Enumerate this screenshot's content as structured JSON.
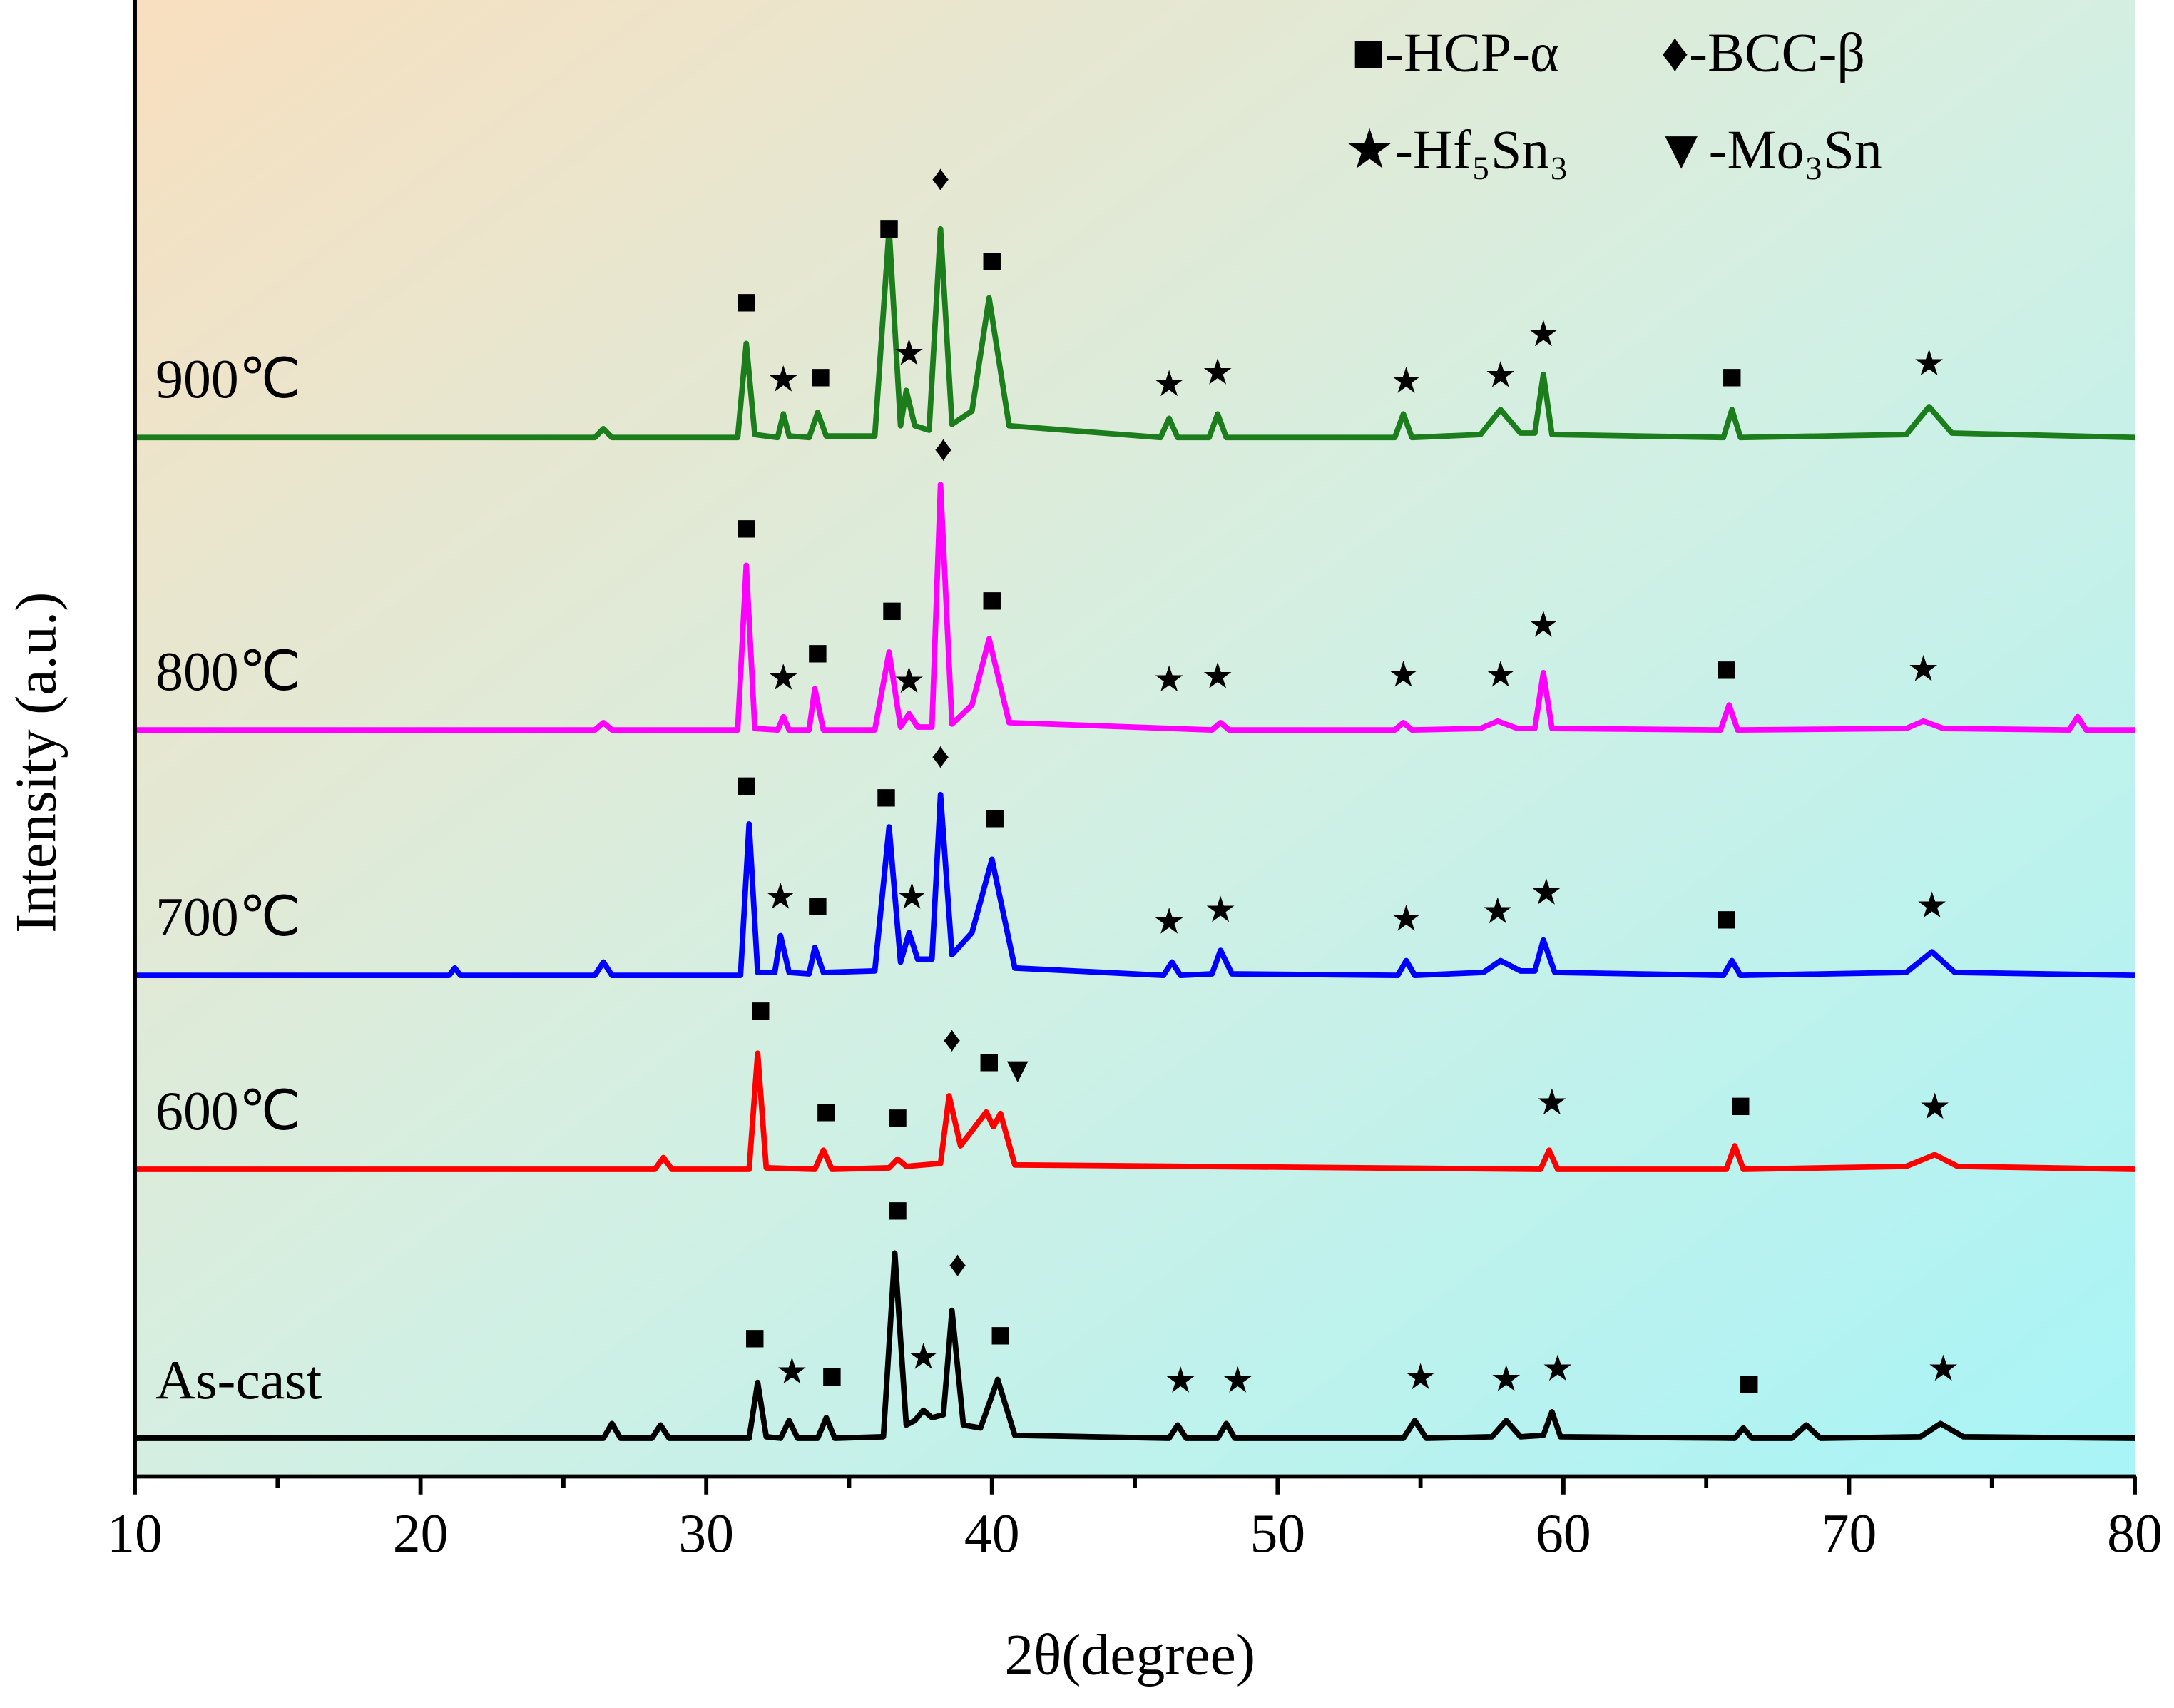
{
  "chart_data": {
    "type": "line",
    "xlabel": "2θ(degree)",
    "ylabel": "Intensity (a.u.)",
    "xlim": [
      10,
      80
    ],
    "xticks": [
      10,
      20,
      30,
      40,
      50,
      60,
      70,
      80
    ],
    "ylim": [
      0,
      100
    ],
    "legend": [
      {
        "text": "■-HCP-α"
      },
      {
        "text": "♦-BCC-β"
      },
      {
        "text": "★-Hf₅Sn₃"
      },
      {
        "text": "▼-Mo₃Sn"
      }
    ],
    "legend_position": "upper right",
    "series": [
      {
        "name": "900℃",
        "color": "#1b7d1b",
        "x": [
          10,
          26.1,
          26.4,
          26.7,
          31.1,
          31.4,
          31.7,
          32.5,
          32.7,
          32.9,
          33.6,
          33.9,
          34.2,
          35.9,
          36.4,
          36.8,
          37.0,
          37.3,
          37.8,
          38.2,
          38.6,
          39.3,
          39.9,
          40.6,
          45.9,
          46.2,
          46.5,
          47.6,
          47.9,
          48.2,
          54.1,
          54.4,
          54.7,
          57.1,
          57.8,
          58.5,
          59.0,
          59.3,
          59.6,
          65.6,
          65.9,
          66.2,
          72.0,
          72.8,
          73.6,
          80
        ],
        "values": [
          70.7,
          70.7,
          71.3,
          70.7,
          70.7,
          77.1,
          70.9,
          70.7,
          72.3,
          70.8,
          70.7,
          72.4,
          70.8,
          70.8,
          84.9,
          71.5,
          73.9,
          71.5,
          71.2,
          84.9,
          71.6,
          72.5,
          80.2,
          71.5,
          70.7,
          72.0,
          70.7,
          70.7,
          72.3,
          70.7,
          70.7,
          72.3,
          70.7,
          70.9,
          72.6,
          71.0,
          71.0,
          75.0,
          70.9,
          70.7,
          72.6,
          70.7,
          70.9,
          72.8,
          71.0,
          70.7
        ],
        "markers": [
          {
            "text": "■",
            "x": 31.4,
            "y": 79.7
          },
          {
            "text": "★",
            "x": 32.7,
            "y": 74.4
          },
          {
            "text": "■",
            "x": 34.0,
            "y": 74.6
          },
          {
            "text": "■",
            "x": 36.4,
            "y": 84.7
          },
          {
            "text": "★",
            "x": 37.1,
            "y": 76.2
          },
          {
            "text": "♦",
            "x": 38.2,
            "y": 88.1
          },
          {
            "text": "■",
            "x": 40.0,
            "y": 82.5
          },
          {
            "text": "★",
            "x": 46.2,
            "y": 74.1
          },
          {
            "text": "★",
            "x": 47.9,
            "y": 74.9
          },
          {
            "text": "★",
            "x": 54.5,
            "y": 74.3
          },
          {
            "text": "★",
            "x": 57.8,
            "y": 74.7
          },
          {
            "text": "★",
            "x": 59.3,
            "y": 77.5
          },
          {
            "text": "■",
            "x": 65.9,
            "y": 74.6
          },
          {
            "text": "★",
            "x": 72.8,
            "y": 75.5
          }
        ]
      },
      {
        "name": "800℃",
        "color": "#ff00ff",
        "x": [
          10,
          26.1,
          26.4,
          26.7,
          31.1,
          31.4,
          31.7,
          32.5,
          32.7,
          32.9,
          33.6,
          33.8,
          34.1,
          35.9,
          36.4,
          36.8,
          37.1,
          37.4,
          37.9,
          38.2,
          38.6,
          39.3,
          39.9,
          40.6,
          47.7,
          48.0,
          48.3,
          54.1,
          54.4,
          54.7,
          57.1,
          57.7,
          58.4,
          59.0,
          59.3,
          59.6,
          65.5,
          65.8,
          66.1,
          72.0,
          72.6,
          73.3,
          77.7,
          78.0,
          78.3,
          80
        ],
        "values": [
          50.8,
          50.8,
          51.3,
          50.8,
          50.8,
          62.0,
          50.9,
          50.8,
          51.7,
          50.8,
          50.8,
          53.6,
          50.8,
          50.8,
          56.1,
          51.0,
          51.9,
          51.0,
          51.0,
          67.5,
          51.2,
          52.5,
          57.0,
          51.3,
          50.8,
          51.3,
          50.8,
          50.8,
          51.3,
          50.8,
          50.9,
          51.4,
          50.9,
          50.9,
          54.7,
          50.9,
          50.8,
          52.5,
          50.8,
          50.9,
          51.4,
          50.9,
          50.8,
          51.7,
          50.8,
          50.8
        ],
        "markers": [
          {
            "text": "■",
            "x": 31.4,
            "y": 64.3
          },
          {
            "text": "★",
            "x": 32.7,
            "y": 54.1
          },
          {
            "text": "■",
            "x": 33.9,
            "y": 55.8
          },
          {
            "text": "■",
            "x": 36.5,
            "y": 58.7
          },
          {
            "text": "★",
            "x": 37.1,
            "y": 53.9
          },
          {
            "text": "♦",
            "x": 38.3,
            "y": 69.7
          },
          {
            "text": "■",
            "x": 40.0,
            "y": 59.4
          },
          {
            "text": "★",
            "x": 46.2,
            "y": 54.0
          },
          {
            "text": "★",
            "x": 47.9,
            "y": 54.2
          },
          {
            "text": "★",
            "x": 54.4,
            "y": 54.3
          },
          {
            "text": "★",
            "x": 57.8,
            "y": 54.3
          },
          {
            "text": "★",
            "x": 59.3,
            "y": 57.7
          },
          {
            "text": "■",
            "x": 65.7,
            "y": 54.7
          },
          {
            "text": "★",
            "x": 72.6,
            "y": 54.7
          }
        ]
      },
      {
        "name": "700℃",
        "color": "#0000ff",
        "x": [
          10,
          21.0,
          21.2,
          21.4,
          26.1,
          26.4,
          26.7,
          31.2,
          31.5,
          31.8,
          32.4,
          32.6,
          32.9,
          33.6,
          33.8,
          34.1,
          35.9,
          36.4,
          36.8,
          37.1,
          37.4,
          37.9,
          38.2,
          38.6,
          39.3,
          40.0,
          40.8,
          46.0,
          46.3,
          46.6,
          47.7,
          48.0,
          48.4,
          54.2,
          54.5,
          54.8,
          57.2,
          57.8,
          58.5,
          59.0,
          59.3,
          59.7,
          65.6,
          65.9,
          66.2,
          72.0,
          72.9,
          73.7,
          80
        ],
        "values": [
          34.1,
          34.1,
          34.6,
          34.1,
          34.1,
          35.0,
          34.1,
          34.1,
          44.4,
          34.3,
          34.3,
          36.8,
          34.3,
          34.2,
          36.0,
          34.3,
          34.4,
          44.2,
          35.0,
          37.0,
          35.2,
          35.2,
          46.4,
          35.5,
          37.0,
          42.0,
          34.6,
          34.1,
          35.0,
          34.1,
          34.2,
          35.8,
          34.2,
          34.1,
          35.1,
          34.1,
          34.3,
          35.1,
          34.4,
          34.4,
          36.5,
          34.3,
          34.1,
          35.1,
          34.1,
          34.3,
          35.7,
          34.3,
          34.1
        ],
        "markers": [
          {
            "text": "■",
            "x": 31.4,
            "y": 46.8
          },
          {
            "text": "★",
            "x": 32.6,
            "y": 39.2
          },
          {
            "text": "■",
            "x": 33.9,
            "y": 38.6
          },
          {
            "text": "■",
            "x": 36.3,
            "y": 46.0
          },
          {
            "text": "★",
            "x": 37.2,
            "y": 39.2
          },
          {
            "text": "♦",
            "x": 38.2,
            "y": 48.8
          },
          {
            "text": "■",
            "x": 40.1,
            "y": 44.6
          },
          {
            "text": "★",
            "x": 46.2,
            "y": 37.5
          },
          {
            "text": "★",
            "x": 48.0,
            "y": 38.3
          },
          {
            "text": "★",
            "x": 54.5,
            "y": 37.7
          },
          {
            "text": "★",
            "x": 57.7,
            "y": 38.2
          },
          {
            "text": "★",
            "x": 59.4,
            "y": 39.5
          },
          {
            "text": "■",
            "x": 65.7,
            "y": 37.7
          },
          {
            "text": "★",
            "x": 72.9,
            "y": 38.6
          }
        ]
      },
      {
        "name": "600℃",
        "color": "#ff0000",
        "x": [
          10,
          28.2,
          28.5,
          28.8,
          31.5,
          31.8,
          32.1,
          33.8,
          34.1,
          34.4,
          36.4,
          36.7,
          37.0,
          38.2,
          38.5,
          38.9,
          39.8,
          40.05,
          40.3,
          40.8,
          59.2,
          59.5,
          59.8,
          65.7,
          66.0,
          66.3,
          72.0,
          73.0,
          73.8,
          80
        ],
        "values": [
          20.9,
          20.9,
          21.7,
          20.9,
          20.9,
          28.8,
          21.0,
          20.9,
          22.2,
          20.9,
          21.0,
          21.6,
          21.1,
          21.3,
          25.9,
          22.5,
          24.8,
          23.8,
          24.7,
          21.2,
          20.9,
          22.2,
          20.9,
          20.9,
          22.5,
          20.9,
          21.1,
          21.9,
          21.1,
          20.9
        ],
        "markers": [
          {
            "text": "■",
            "x": 31.9,
            "y": 31.5
          },
          {
            "text": "■",
            "x": 34.2,
            "y": 24.6
          },
          {
            "text": "■",
            "x": 36.7,
            "y": 24.2
          },
          {
            "text": "♦",
            "x": 38.6,
            "y": 29.5
          },
          {
            "text": "■",
            "x": 39.9,
            "y": 28.0
          },
          {
            "text": "▼",
            "x": 40.9,
            "y": 27.4
          },
          {
            "text": "★",
            "x": 59.6,
            "y": 25.2
          },
          {
            "text": "■",
            "x": 66.2,
            "y": 25.0
          },
          {
            "text": "★",
            "x": 73.0,
            "y": 24.9
          }
        ]
      },
      {
        "name": "As-cast",
        "color": "#000000",
        "x": [
          10,
          26.4,
          26.7,
          27.0,
          28.1,
          28.4,
          28.7,
          31.5,
          31.8,
          32.1,
          32.6,
          32.9,
          33.2,
          33.9,
          34.2,
          34.5,
          36.2,
          36.6,
          37.0,
          37.3,
          37.6,
          37.9,
          38.3,
          38.6,
          39.0,
          39.6,
          40.2,
          40.8,
          46.2,
          46.5,
          46.8,
          47.9,
          48.2,
          48.5,
          54.4,
          54.8,
          55.2,
          57.5,
          58.0,
          58.5,
          59.3,
          59.6,
          59.9,
          66.0,
          66.3,
          66.6,
          68.0,
          68.5,
          69.0,
          72.5,
          73.2,
          74.0,
          80
        ],
        "values": [
          2.6,
          2.6,
          3.6,
          2.6,
          2.6,
          3.5,
          2.6,
          2.6,
          6.4,
          2.7,
          2.6,
          3.8,
          2.6,
          2.6,
          4.0,
          2.6,
          2.7,
          15.2,
          3.5,
          3.8,
          4.5,
          4.0,
          4.2,
          11.3,
          3.5,
          3.3,
          6.6,
          2.8,
          2.6,
          3.5,
          2.6,
          2.6,
          3.6,
          2.6,
          2.6,
          3.8,
          2.6,
          2.7,
          3.8,
          2.7,
          2.8,
          4.4,
          2.7,
          2.6,
          3.3,
          2.6,
          2.6,
          3.5,
          2.6,
          2.7,
          3.6,
          2.7,
          2.6
        ],
        "markers": [
          {
            "text": "■",
            "x": 36.7,
            "y": 17.9
          },
          {
            "text": "♦",
            "x": 38.8,
            "y": 14.2
          },
          {
            "text": "■",
            "x": 31.7,
            "y": 9.2
          },
          {
            "text": "★",
            "x": 33.0,
            "y": 6.9
          },
          {
            "text": "■",
            "x": 34.4,
            "y": 6.6
          },
          {
            "text": "★",
            "x": 37.6,
            "y": 7.9
          },
          {
            "text": "■",
            "x": 40.3,
            "y": 9.4
          },
          {
            "text": "★",
            "x": 46.6,
            "y": 6.3
          },
          {
            "text": "★",
            "x": 48.6,
            "y": 6.3
          },
          {
            "text": "★",
            "x": 55.0,
            "y": 6.5
          },
          {
            "text": "★",
            "x": 58.0,
            "y": 6.4
          },
          {
            "text": "★",
            "x": 59.8,
            "y": 7.1
          },
          {
            "text": "■",
            "x": 66.5,
            "y": 6.1
          },
          {
            "text": "★",
            "x": 73.3,
            "y": 7.1
          }
        ]
      }
    ]
  }
}
